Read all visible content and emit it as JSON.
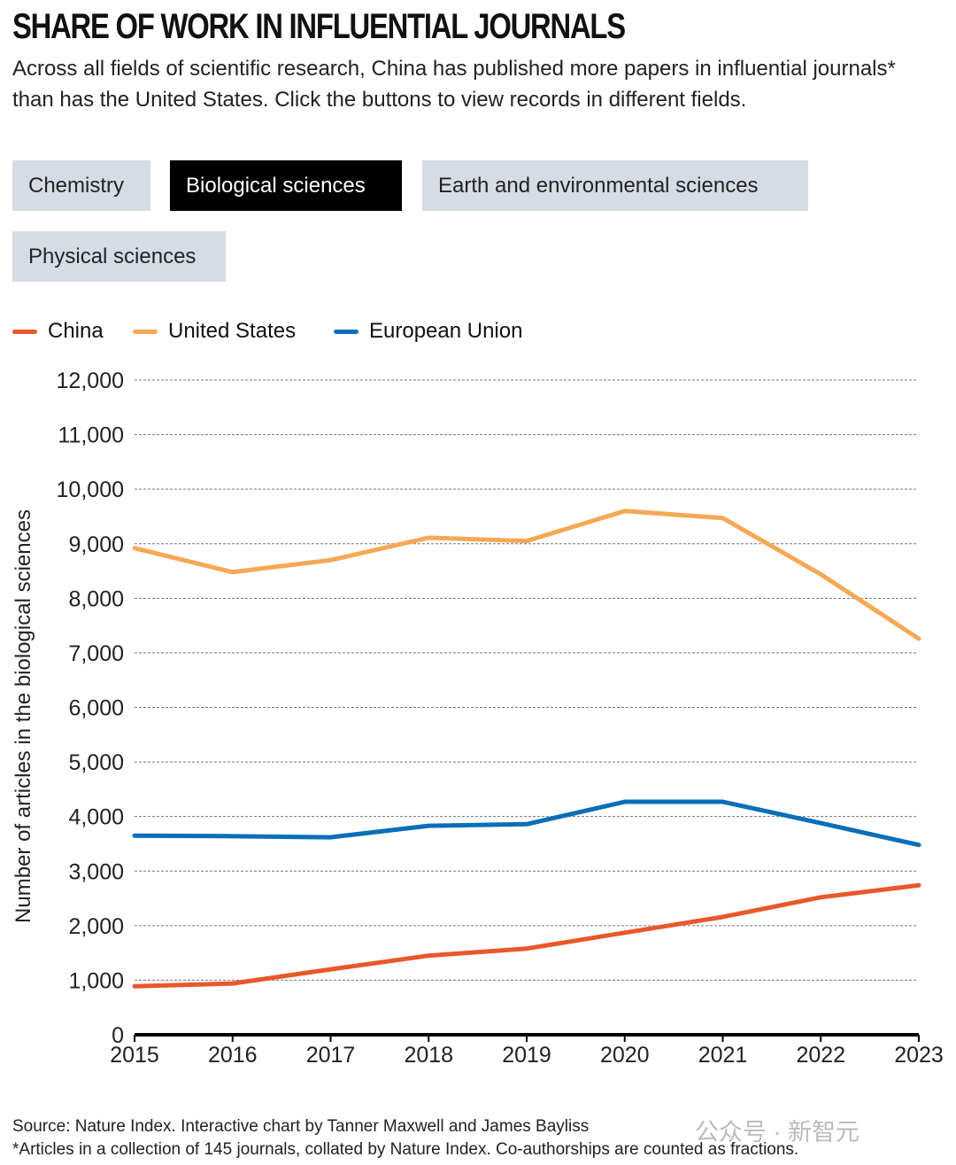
{
  "title": "SHARE OF WORK IN INFLUENTIAL JOURNALS",
  "subtitle": "Across all fields of scientific research, China has published more papers in influential journals* than has the United States. Click the buttons to view records in different fields.",
  "buttons": [
    {
      "label": "Chemistry",
      "active": false
    },
    {
      "label": "Biological sciences",
      "active": true
    },
    {
      "label": "Earth and environmental sciences",
      "active": false
    },
    {
      "label": "Physical sciences",
      "active": false
    }
  ],
  "footer": {
    "source": "Source: Nature Index. Interactive chart by Tanner Maxwell and James Bayliss",
    "note": "*Articles in a collection of 145 journals, collated by Nature Index. Co-authorships are counted as fractions."
  },
  "watermark": "公众号 · 新智元",
  "chart_data": {
    "type": "line",
    "ylabel": "Number of articles in the biological sciences",
    "x": [
      2015,
      2016,
      2017,
      2018,
      2019,
      2020,
      2021,
      2022,
      2023
    ],
    "xticks": [
      "2015",
      "2016",
      "2017",
      "2018",
      "2019",
      "2020",
      "2021",
      "2022",
      "2023"
    ],
    "ylim": [
      0,
      12000
    ],
    "yticks": [
      "0",
      "1,000",
      "2,000",
      "3,000",
      "4,000",
      "5,000",
      "6,000",
      "7,000",
      "8,000",
      "9,000",
      "10,000",
      "11,000",
      "12,000"
    ],
    "grid": true,
    "legend_position": "top-left",
    "series": [
      {
        "name": "China",
        "color": "#e8582a",
        "values": [
          890,
          940,
          1200,
          1450,
          1580,
          1870,
          2160,
          2520,
          2740
        ]
      },
      {
        "name": "United States",
        "color": "#f5a855",
        "values": [
          8920,
          8480,
          8700,
          9110,
          9050,
          9600,
          9470,
          8440,
          7260
        ]
      },
      {
        "name": "European Union",
        "color": "#0b6eb8",
        "values": [
          3650,
          3640,
          3620,
          3830,
          3860,
          4270,
          4270,
          3880,
          3480
        ]
      }
    ]
  }
}
